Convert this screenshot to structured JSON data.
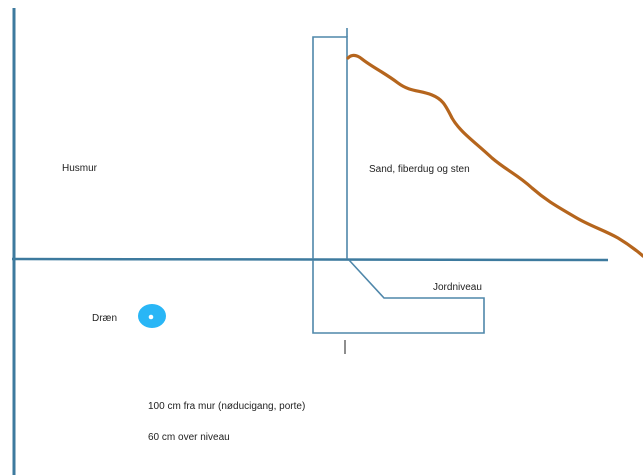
{
  "labels": {
    "wall": "Husmur",
    "fill": "Sand, fiberdug og sten",
    "ground": "Jordniveau",
    "drain": "Dræn"
  },
  "notes": [
    "100 cm fra mur (nøducigang, porte)",
    "60 cm over niveau"
  ],
  "colors": {
    "structure": "#3d7a9e",
    "terrain": "#b5651d",
    "drain": "#29b6f6"
  }
}
